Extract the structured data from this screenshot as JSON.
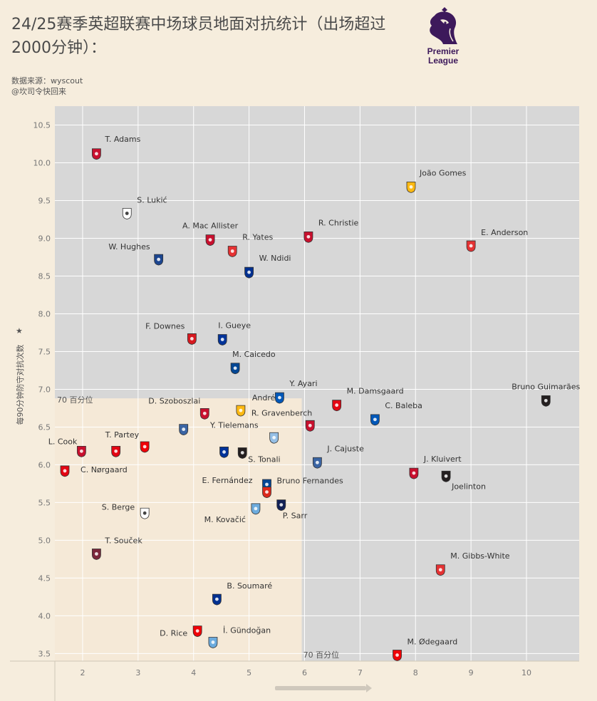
{
  "title": "24/25赛季英超联赛中场球员地面对抗统计（出场超过2000分钟）：",
  "source_line": "数据来源：wyscout",
  "author_line": "@坎司令快回来",
  "logo": {
    "line1": "Premier",
    "line2": "League"
  },
  "colors": {
    "plot_bg": "#d7d7d7",
    "quadrant_bg": "#f5e9d7",
    "page_bg": "#f6eddd",
    "grid": "#ffffff"
  },
  "chart_data": {
    "type": "scatter",
    "title": "24/25赛季英超联赛中场球员地面对抗统计（出场超过2000分钟）：",
    "xlabel": "",
    "ylabel": "每90分钟防守对抗次数",
    "xlim": [
      1.5,
      10.95
    ],
    "ylim": [
      3.4,
      10.75
    ],
    "x_ticks": [
      "2",
      "3",
      "4",
      "5",
      "6",
      "7",
      "8",
      "9",
      "10"
    ],
    "y_ticks": [
      "3.5",
      "4.0",
      "4.5",
      "5.0",
      "5.5",
      "6.0",
      "6.5",
      "7.0",
      "7.5",
      "8.0",
      "8.5",
      "9.0",
      "9.5",
      "10.0",
      "10.5"
    ],
    "grid": true,
    "reference_lines": [
      {
        "axis": "y",
        "value": 6.88,
        "label": "70 百分位"
      },
      {
        "axis": "x",
        "value": 5.95,
        "label": "70 百分位"
      }
    ],
    "points": [
      {
        "name": "T. Adams",
        "x": 2.25,
        "y": 10.12,
        "club": "Bournemouth",
        "color": "#c8102e"
      },
      {
        "name": "S. Lukić",
        "x": 2.8,
        "y": 9.33,
        "club": "Fulham",
        "color": "#ffffff"
      },
      {
        "name": "A. Mac Allister",
        "x": 4.3,
        "y": 8.98,
        "club": "Liverpool",
        "color": "#c8102e"
      },
      {
        "name": "R. Yates",
        "x": 4.7,
        "y": 8.83,
        "club": "Nottingham Forest",
        "color": "#e53233"
      },
      {
        "name": "R. Christie",
        "x": 6.07,
        "y": 9.02,
        "club": "Bournemouth",
        "color": "#c8102e"
      },
      {
        "name": "João Gomes",
        "x": 7.92,
        "y": 9.68,
        "club": "Wolves",
        "color": "#fdb913"
      },
      {
        "name": "E. Anderson",
        "x": 9.0,
        "y": 8.9,
        "club": "Nottingham Forest",
        "color": "#e53233"
      },
      {
        "name": "W. Hughes",
        "x": 3.37,
        "y": 8.72,
        "club": "Crystal Palace",
        "color": "#1b458f"
      },
      {
        "name": "W. Ndidi",
        "x": 5.0,
        "y": 8.55,
        "club": "Leicester",
        "color": "#003090"
      },
      {
        "name": "F. Downes",
        "x": 3.97,
        "y": 7.67,
        "club": "Southampton",
        "color": "#d71920"
      },
      {
        "name": "I. Gueye",
        "x": 4.52,
        "y": 7.66,
        "club": "Everton",
        "color": "#003399"
      },
      {
        "name": "M. Caicedo",
        "x": 4.75,
        "y": 7.28,
        "club": "Chelsea",
        "color": "#034694"
      },
      {
        "name": "Y. Ayari",
        "x": 5.55,
        "y": 6.89,
        "club": "Brighton",
        "color": "#0057b8"
      },
      {
        "name": "M. Damsgaard",
        "x": 6.58,
        "y": 6.79,
        "club": "Brentford",
        "color": "#e30613"
      },
      {
        "name": "Bruno Guimarães",
        "x": 10.35,
        "y": 6.85,
        "club": "Newcastle",
        "color": "#241f20"
      },
      {
        "name": "D. Szoboszlai",
        "x": 4.2,
        "y": 6.68,
        "club": "Liverpool",
        "color": "#c8102e"
      },
      {
        "name": "André",
        "x": 4.85,
        "y": 6.72,
        "club": "Wolves",
        "color": "#fdb913"
      },
      {
        "name": "C. Baleba",
        "x": 7.27,
        "y": 6.6,
        "club": "Brighton",
        "color": "#0057b8"
      },
      {
        "name": "R. Gravenberch",
        "x": 6.1,
        "y": 6.52,
        "club": "Liverpool",
        "color": "#c8102e"
      },
      {
        "name": "Y. Tielemans",
        "x": 5.45,
        "y": 6.36,
        "club": "Aston Villa",
        "color": "#95bfe5"
      },
      {
        "name": "",
        "x": 3.82,
        "y": 6.47,
        "club": "Ipswich",
        "color": "#3a64a3"
      },
      {
        "name": "T. Partey",
        "x": 3.12,
        "y": 6.24,
        "club": "Arsenal",
        "color": "#ef0107"
      },
      {
        "name": "L. Cook",
        "x": 1.98,
        "y": 6.18,
        "club": "Bournemouth",
        "color": "#c8102e"
      },
      {
        "name": "",
        "x": 2.6,
        "y": 6.18,
        "club": "Brentford",
        "color": "#e30613"
      },
      {
        "name": "",
        "x": 4.55,
        "y": 6.17,
        "club": "Everton",
        "color": "#003399"
      },
      {
        "name": "S. Tonali",
        "x": 4.88,
        "y": 6.16,
        "club": "Newcastle",
        "color": "#241f20"
      },
      {
        "name": "J. Cajuste",
        "x": 6.23,
        "y": 6.03,
        "club": "Ipswich",
        "color": "#3a64a3"
      },
      {
        "name": "C. Nørgaard",
        "x": 1.68,
        "y": 5.92,
        "club": "Brentford",
        "color": "#e30613"
      },
      {
        "name": "J. Kluivert",
        "x": 7.97,
        "y": 5.89,
        "club": "Bournemouth",
        "color": "#c8102e"
      },
      {
        "name": "Joelinton",
        "x": 8.55,
        "y": 5.85,
        "club": "Newcastle",
        "color": "#241f20"
      },
      {
        "name": "E. Fernández",
        "x": 5.32,
        "y": 5.74,
        "club": "Chelsea",
        "color": "#034694"
      },
      {
        "name": "Bruno Fernandes",
        "x": 5.32,
        "y": 5.64,
        "club": "Manchester United",
        "color": "#da291c"
      },
      {
        "name": "P. Sarr",
        "x": 5.58,
        "y": 5.47,
        "club": "Tottenham",
        "color": "#132257"
      },
      {
        "name": "M. Kovačić",
        "x": 5.12,
        "y": 5.42,
        "club": "Manchester City",
        "color": "#6cabdd"
      },
      {
        "name": "S. Berge",
        "x": 3.12,
        "y": 5.36,
        "club": "Fulham",
        "color": "#ffffff"
      },
      {
        "name": "T. Souček",
        "x": 2.25,
        "y": 4.82,
        "club": "West Ham",
        "color": "#7a263a"
      },
      {
        "name": "M. Gibbs-White",
        "x": 8.45,
        "y": 4.61,
        "club": "Nottingham Forest",
        "color": "#e53233"
      },
      {
        "name": "B. Soumaré",
        "x": 4.42,
        "y": 4.22,
        "club": "Leicester",
        "color": "#003090"
      },
      {
        "name": "D. Rice",
        "x": 4.07,
        "y": 3.8,
        "club": "Arsenal",
        "color": "#ef0107"
      },
      {
        "name": "İ. Gündoğan",
        "x": 4.35,
        "y": 3.65,
        "club": "Manchester City",
        "color": "#6cabdd"
      },
      {
        "name": "M. Ødegaard",
        "x": 7.67,
        "y": 3.48,
        "club": "Arsenal",
        "color": "#ef0107"
      }
    ]
  }
}
